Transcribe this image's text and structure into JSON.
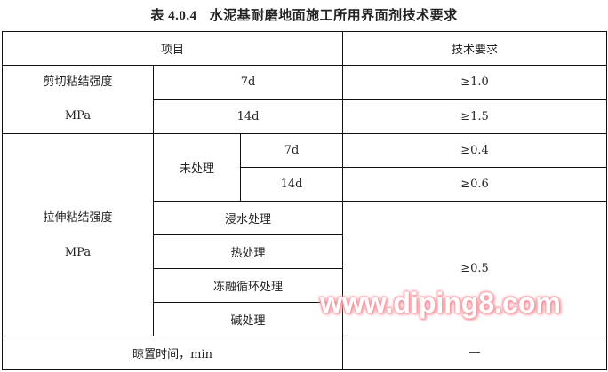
{
  "title": {
    "number": "表 4.0.4",
    "text": "水泥基耐磨地面施工所用界面剂技术要求"
  },
  "header": {
    "item": "项目",
    "requirement": "技术要求"
  },
  "shear": {
    "label": "剪切粘结强度",
    "unit": "MPa",
    "rows": [
      {
        "age": "7d",
        "value": "≥1.0"
      },
      {
        "age": "14d",
        "value": "≥1.5"
      }
    ]
  },
  "tensile": {
    "label": "拉伸粘结强度",
    "unit": "MPa",
    "untreated": {
      "label": "未处理",
      "rows": [
        {
          "age": "7d",
          "value": "≥0.4"
        },
        {
          "age": "14d",
          "value": "≥0.6"
        }
      ]
    },
    "treatments": [
      "浸水处理",
      "热处理",
      "冻融循环处理",
      "碱处理"
    ],
    "treatment_value": "≥0.5"
  },
  "open_time": {
    "label": "晾置时间，min",
    "value": "—"
  },
  "watermark": "www.diping8.com"
}
